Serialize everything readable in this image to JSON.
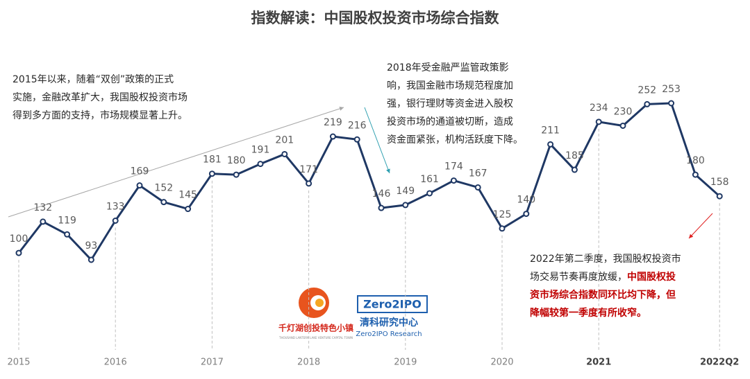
{
  "chart_data": {
    "type": "line",
    "title": "指数解读：中国股权投资市场综合指数",
    "categories": [
      "2015",
      null,
      null,
      null,
      "2016",
      null,
      null,
      null,
      "2017",
      null,
      null,
      null,
      "2018",
      null,
      null,
      null,
      "2019",
      null,
      null,
      null,
      "2020",
      null,
      null,
      null,
      "2021",
      null,
      null,
      null,
      null,
      "2022Q2"
    ],
    "bold_category_indices": [
      24,
      29
    ],
    "series": [
      {
        "name": "中国股权投资市场综合指数",
        "color": "#1f3864",
        "values": [
          100,
          132,
          119,
          93,
          133,
          169,
          152,
          145,
          181,
          180,
          191,
          201,
          171,
          219,
          216,
          146,
          149,
          161,
          174,
          167,
          125,
          140,
          211,
          185,
          234,
          230,
          252,
          253,
          180,
          158
        ]
      }
    ],
    "highlight_color": "#c00000",
    "annotations": [
      {
        "lines": [
          [
            {
              "text": "2015年以来，随着“双创”政策的正式"
            }
          ],
          [
            {
              "text": "实施，金融改革扩大，我国股权投资市场"
            }
          ],
          [
            {
              "text": "得到多方面的支持，市场规模显著上升。"
            }
          ]
        ]
      },
      {
        "lines": [
          [
            {
              "text": "2018年受金融严监管政策影"
            }
          ],
          [
            {
              "text": "响，我国金融市场规范程度加"
            }
          ],
          [
            {
              "text": "强，银行理财等资金进入股权"
            }
          ],
          [
            {
              "text": "投资市场的通道被切断，造成"
            }
          ],
          [
            {
              "text": "资金面紧张，机构活跃度下降。"
            }
          ]
        ]
      },
      {
        "lines": [
          [
            {
              "text": "2022年第二季度，我国股权投资市"
            }
          ],
          [
            {
              "text": "场交易节奏再度放缓，"
            },
            {
              "text": "中国股权投",
              "highlight": true
            }
          ],
          [
            {
              "text": "资市场综合指数同环比均下降，但",
              "highlight": true
            }
          ],
          [
            {
              "text": "降幅较第一季度有所收窄。",
              "highlight": true
            }
          ]
        ]
      }
    ]
  },
  "logos": {
    "left_name": "千灯湖创投特色小镇",
    "left_sub": "THOUSAND LANTERN LAKE VENTURE CAPITAL TOWN",
    "right_badge": "Zero2IPO",
    "right_name": "清科研究中心",
    "right_sub": "Zero2IPO Research"
  }
}
